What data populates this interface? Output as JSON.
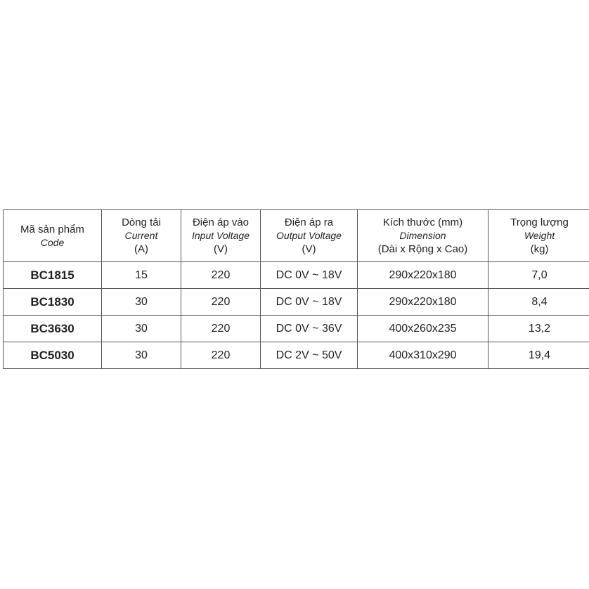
{
  "headers": [
    {
      "vi": "Mã sản phẩm",
      "en": "Code",
      "unit": ""
    },
    {
      "vi": "Dòng tải",
      "en": "Current",
      "unit": "(A)"
    },
    {
      "vi": "Điện áp vào",
      "en": "Input Voltage",
      "unit": "(V)"
    },
    {
      "vi": "Điện áp ra",
      "en": "Output Voltage",
      "unit": "(V)"
    },
    {
      "vi": "Kích thước (mm)",
      "en": "Dimension",
      "unit": "(Dài x Rộng x Cao)"
    },
    {
      "vi": "Trọng lượng",
      "en": "Weight",
      "unit": "(kg)"
    }
  ],
  "rows": [
    [
      "BC1815",
      "15",
      "220",
      "DC 0V ~ 18V",
      "290x220x180",
      "7,0"
    ],
    [
      "BC1830",
      "30",
      "220",
      "DC 0V ~ 18V",
      "290x220x180",
      "8,4"
    ],
    [
      "BC3630",
      "30",
      "220",
      "DC 0V ~ 36V",
      "400x260x235",
      "13,2"
    ],
    [
      "BC5030",
      "30",
      "220",
      "DC 2V ~ 50V",
      "400x310x290",
      "19,4"
    ]
  ]
}
